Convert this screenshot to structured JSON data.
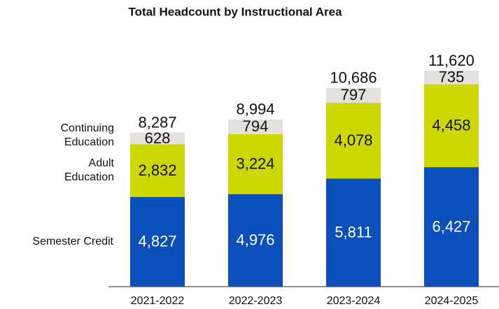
{
  "chart_data": {
    "type": "stacked_bar",
    "title": "Total Headcount by Instructional Area",
    "categories": [
      "2021-2022",
      "2022-2023",
      "2023-2024",
      "2024-2025"
    ],
    "series": [
      {
        "name": "Semester Credit",
        "color": "#0a4fba",
        "values": [
          4827,
          4976,
          5811,
          6427
        ],
        "value_labels": [
          "4,827",
          "4,976",
          "5,811",
          "6,427"
        ]
      },
      {
        "name": "Adult Education",
        "color": "#cdd700",
        "values": [
          2832,
          3224,
          4078,
          4458
        ],
        "value_labels": [
          "2,832",
          "3,224",
          "4,078",
          "4,458"
        ]
      },
      {
        "name": "Continuing Education",
        "color": "#e3e1dc",
        "values": [
          628,
          794,
          797,
          735
        ],
        "value_labels": [
          "628",
          "794",
          "797",
          "735"
        ]
      }
    ],
    "totals": [
      8287,
      8994,
      10686,
      11620
    ],
    "total_labels": [
      "8,287",
      "8,994",
      "10,686",
      "11,620"
    ]
  }
}
